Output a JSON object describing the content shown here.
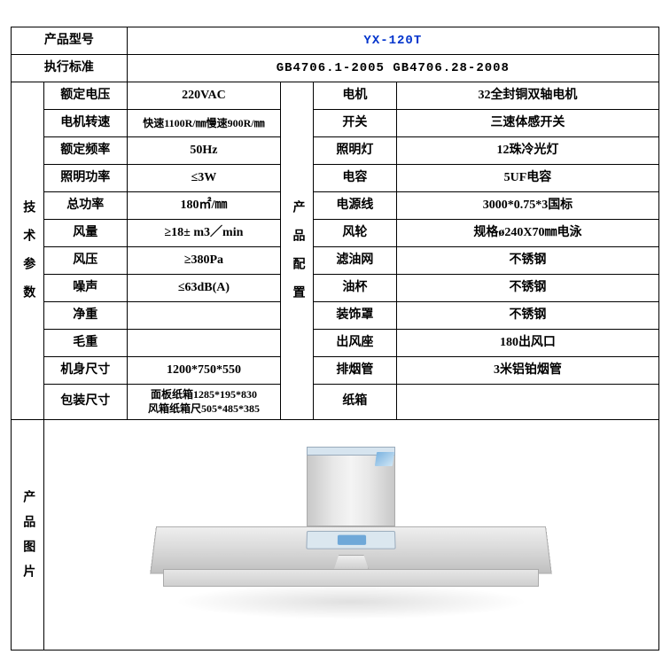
{
  "header": {
    "model_label": "产品型号",
    "model_value": "YX-120T",
    "standard_label": "执行标准",
    "standard_value": "GB4706.1-2005    GB4706.28-2008"
  },
  "left_header": "技术参数",
  "right_header": "产品配置",
  "image_header": "产品图片",
  "tech": [
    {
      "label": "额定电压",
      "value": "220VAC"
    },
    {
      "label": "电机转速",
      "value": "快速1100R/㎜慢速900R/㎜"
    },
    {
      "label": "额定频率",
      "value": "50Hz"
    },
    {
      "label": "照明功率",
      "value": "≤3W"
    },
    {
      "label": "总功率",
      "value": "180㎡/㎜"
    },
    {
      "label": "风量",
      "value": "≥18± m3／min"
    },
    {
      "label": "风压",
      "value": "≥380Pa"
    },
    {
      "label": "噪声",
      "value": "≤63dB(A)"
    },
    {
      "label": "净重",
      "value": ""
    },
    {
      "label": "毛重",
      "value": ""
    },
    {
      "label": "机身尺寸",
      "value": "1200*750*550"
    },
    {
      "label": "包装尺寸",
      "value": "面板纸箱1285*195*830\n风箱纸箱尺505*485*385"
    }
  ],
  "config": [
    {
      "label": "电机",
      "value": "32全封铜双轴电机"
    },
    {
      "label": "开关",
      "value": "三速体感开关"
    },
    {
      "label": "照明灯",
      "value": "12珠冷光灯"
    },
    {
      "label": "电容",
      "value": "5UF电容"
    },
    {
      "label": "电源线",
      "value": "3000*0.75*3国标"
    },
    {
      "label": "风轮",
      "value": "规格ø240X70㎜电泳"
    },
    {
      "label": "滤油网",
      "value": "不锈钢"
    },
    {
      "label": "油杯",
      "value": "不锈钢"
    },
    {
      "label": "装饰罩",
      "value": "不锈钢"
    },
    {
      "label": "出风座",
      "value": "180出风口"
    },
    {
      "label": "排烟管",
      "value": "3米铝铂烟管"
    },
    {
      "label": "纸箱",
      "value": ""
    }
  ],
  "colors": {
    "model": "#0033cc",
    "border": "#000000",
    "bg": "#ffffff"
  }
}
